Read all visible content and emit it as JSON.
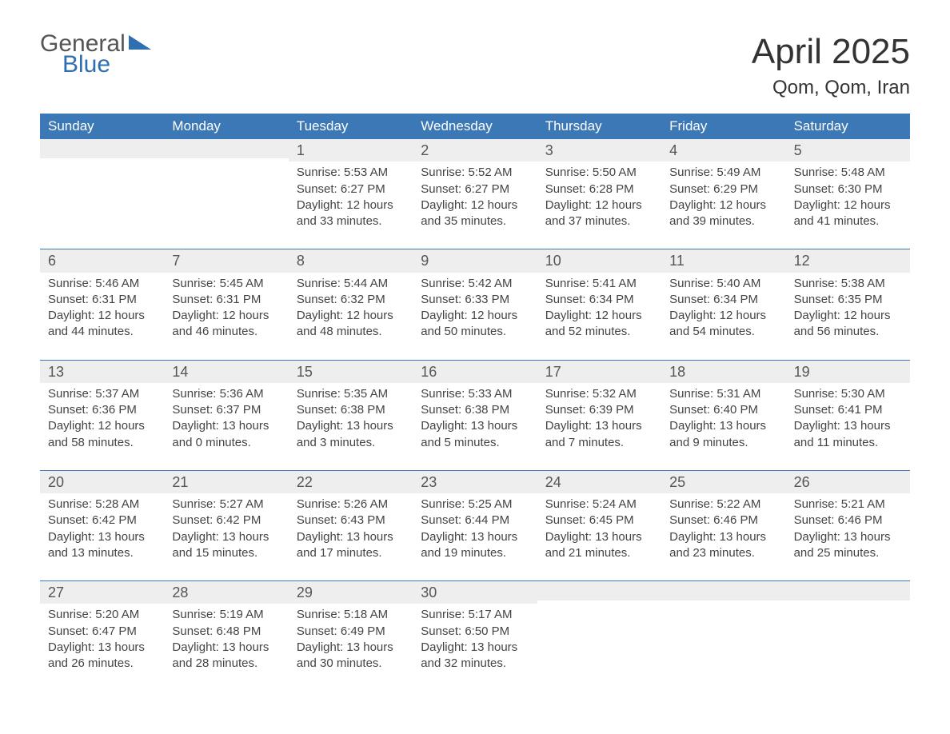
{
  "logo": {
    "line1": "General",
    "line2": "Blue"
  },
  "title": "April 2025",
  "subtitle": "Qom, Qom, Iran",
  "colors": {
    "header_bg": "#3b78b5",
    "header_text": "#ffffff",
    "daynum_bg": "#eeeeee",
    "border": "#3b78b5",
    "body_text": "#444444",
    "logo_gray": "#555555",
    "logo_blue": "#2f6fb0",
    "page_bg": "#ffffff"
  },
  "day_names": [
    "Sunday",
    "Monday",
    "Tuesday",
    "Wednesday",
    "Thursday",
    "Friday",
    "Saturday"
  ],
  "weeks": [
    [
      {
        "empty": true
      },
      {
        "empty": true
      },
      {
        "day": "1",
        "sunrise": "Sunrise: 5:53 AM",
        "sunset": "Sunset: 6:27 PM",
        "daylight": "Daylight: 12 hours and 33 minutes."
      },
      {
        "day": "2",
        "sunrise": "Sunrise: 5:52 AM",
        "sunset": "Sunset: 6:27 PM",
        "daylight": "Daylight: 12 hours and 35 minutes."
      },
      {
        "day": "3",
        "sunrise": "Sunrise: 5:50 AM",
        "sunset": "Sunset: 6:28 PM",
        "daylight": "Daylight: 12 hours and 37 minutes."
      },
      {
        "day": "4",
        "sunrise": "Sunrise: 5:49 AM",
        "sunset": "Sunset: 6:29 PM",
        "daylight": "Daylight: 12 hours and 39 minutes."
      },
      {
        "day": "5",
        "sunrise": "Sunrise: 5:48 AM",
        "sunset": "Sunset: 6:30 PM",
        "daylight": "Daylight: 12 hours and 41 minutes."
      }
    ],
    [
      {
        "day": "6",
        "sunrise": "Sunrise: 5:46 AM",
        "sunset": "Sunset: 6:31 PM",
        "daylight": "Daylight: 12 hours and 44 minutes."
      },
      {
        "day": "7",
        "sunrise": "Sunrise: 5:45 AM",
        "sunset": "Sunset: 6:31 PM",
        "daylight": "Daylight: 12 hours and 46 minutes."
      },
      {
        "day": "8",
        "sunrise": "Sunrise: 5:44 AM",
        "sunset": "Sunset: 6:32 PM",
        "daylight": "Daylight: 12 hours and 48 minutes."
      },
      {
        "day": "9",
        "sunrise": "Sunrise: 5:42 AM",
        "sunset": "Sunset: 6:33 PM",
        "daylight": "Daylight: 12 hours and 50 minutes."
      },
      {
        "day": "10",
        "sunrise": "Sunrise: 5:41 AM",
        "sunset": "Sunset: 6:34 PM",
        "daylight": "Daylight: 12 hours and 52 minutes."
      },
      {
        "day": "11",
        "sunrise": "Sunrise: 5:40 AM",
        "sunset": "Sunset: 6:34 PM",
        "daylight": "Daylight: 12 hours and 54 minutes."
      },
      {
        "day": "12",
        "sunrise": "Sunrise: 5:38 AM",
        "sunset": "Sunset: 6:35 PM",
        "daylight": "Daylight: 12 hours and 56 minutes."
      }
    ],
    [
      {
        "day": "13",
        "sunrise": "Sunrise: 5:37 AM",
        "sunset": "Sunset: 6:36 PM",
        "daylight": "Daylight: 12 hours and 58 minutes."
      },
      {
        "day": "14",
        "sunrise": "Sunrise: 5:36 AM",
        "sunset": "Sunset: 6:37 PM",
        "daylight": "Daylight: 13 hours and 0 minutes."
      },
      {
        "day": "15",
        "sunrise": "Sunrise: 5:35 AM",
        "sunset": "Sunset: 6:38 PM",
        "daylight": "Daylight: 13 hours and 3 minutes."
      },
      {
        "day": "16",
        "sunrise": "Sunrise: 5:33 AM",
        "sunset": "Sunset: 6:38 PM",
        "daylight": "Daylight: 13 hours and 5 minutes."
      },
      {
        "day": "17",
        "sunrise": "Sunrise: 5:32 AM",
        "sunset": "Sunset: 6:39 PM",
        "daylight": "Daylight: 13 hours and 7 minutes."
      },
      {
        "day": "18",
        "sunrise": "Sunrise: 5:31 AM",
        "sunset": "Sunset: 6:40 PM",
        "daylight": "Daylight: 13 hours and 9 minutes."
      },
      {
        "day": "19",
        "sunrise": "Sunrise: 5:30 AM",
        "sunset": "Sunset: 6:41 PM",
        "daylight": "Daylight: 13 hours and 11 minutes."
      }
    ],
    [
      {
        "day": "20",
        "sunrise": "Sunrise: 5:28 AM",
        "sunset": "Sunset: 6:42 PM",
        "daylight": "Daylight: 13 hours and 13 minutes."
      },
      {
        "day": "21",
        "sunrise": "Sunrise: 5:27 AM",
        "sunset": "Sunset: 6:42 PM",
        "daylight": "Daylight: 13 hours and 15 minutes."
      },
      {
        "day": "22",
        "sunrise": "Sunrise: 5:26 AM",
        "sunset": "Sunset: 6:43 PM",
        "daylight": "Daylight: 13 hours and 17 minutes."
      },
      {
        "day": "23",
        "sunrise": "Sunrise: 5:25 AM",
        "sunset": "Sunset: 6:44 PM",
        "daylight": "Daylight: 13 hours and 19 minutes."
      },
      {
        "day": "24",
        "sunrise": "Sunrise: 5:24 AM",
        "sunset": "Sunset: 6:45 PM",
        "daylight": "Daylight: 13 hours and 21 minutes."
      },
      {
        "day": "25",
        "sunrise": "Sunrise: 5:22 AM",
        "sunset": "Sunset: 6:46 PM",
        "daylight": "Daylight: 13 hours and 23 minutes."
      },
      {
        "day": "26",
        "sunrise": "Sunrise: 5:21 AM",
        "sunset": "Sunset: 6:46 PM",
        "daylight": "Daylight: 13 hours and 25 minutes."
      }
    ],
    [
      {
        "day": "27",
        "sunrise": "Sunrise: 5:20 AM",
        "sunset": "Sunset: 6:47 PM",
        "daylight": "Daylight: 13 hours and 26 minutes."
      },
      {
        "day": "28",
        "sunrise": "Sunrise: 5:19 AM",
        "sunset": "Sunset: 6:48 PM",
        "daylight": "Daylight: 13 hours and 28 minutes."
      },
      {
        "day": "29",
        "sunrise": "Sunrise: 5:18 AM",
        "sunset": "Sunset: 6:49 PM",
        "daylight": "Daylight: 13 hours and 30 minutes."
      },
      {
        "day": "30",
        "sunrise": "Sunrise: 5:17 AM",
        "sunset": "Sunset: 6:50 PM",
        "daylight": "Daylight: 13 hours and 32 minutes."
      },
      {
        "empty": true
      },
      {
        "empty": true
      },
      {
        "empty": true
      }
    ]
  ]
}
